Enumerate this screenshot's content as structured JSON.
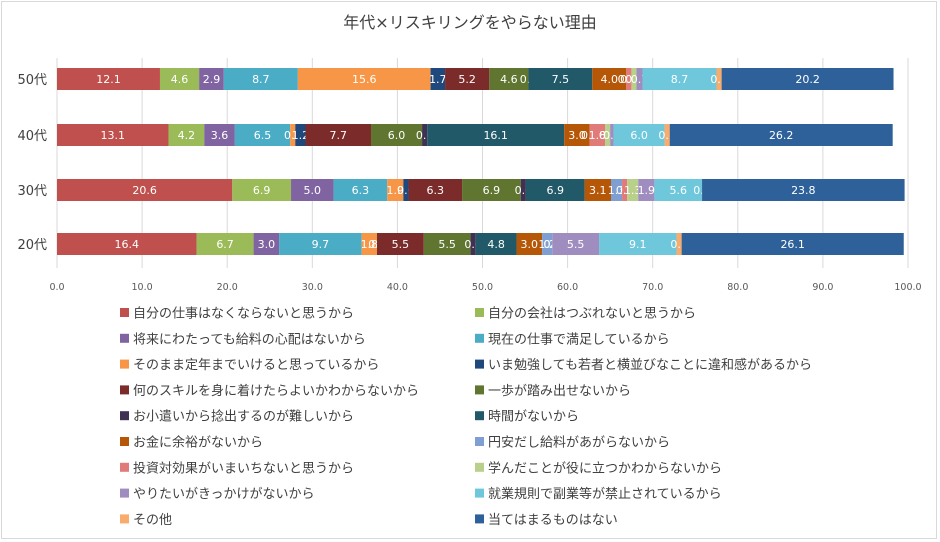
{
  "chart_data": {
    "type": "bar",
    "orientation": "horizontal",
    "stacked": true,
    "title": "年代×リスキリングをやらない理由",
    "categories": [
      "50代",
      "40代",
      "30代",
      "20代"
    ],
    "xlim": [
      0,
      100
    ],
    "xticks": [
      "0.0",
      "10.0",
      "20.0",
      "30.0",
      "40.0",
      "50.0",
      "60.0",
      "70.0",
      "80.0",
      "90.0",
      "100.0"
    ],
    "grid": "vertical",
    "legend_position": "bottom",
    "series": [
      {
        "name": "自分の仕事はなくならないと思うから",
        "color": "#c0504d",
        "values": [
          12.1,
          13.1,
          20.6,
          16.4
        ]
      },
      {
        "name": "自分の会社はつぶれないと思うから",
        "color": "#9bbb59",
        "values": [
          4.6,
          4.2,
          6.9,
          6.7
        ]
      },
      {
        "name": "将来にわたっても給料の心配はないから",
        "color": "#8064a2",
        "values": [
          2.9,
          3.6,
          5.0,
          3.0
        ]
      },
      {
        "name": "現在の仕事で満足しているから",
        "color": "#4bacc6",
        "values": [
          8.7,
          6.5,
          6.3,
          9.7
        ]
      },
      {
        "name": "そのまま定年までいけると思っているから",
        "color": "#f79646",
        "values": [
          15.6,
          0.6,
          1.9,
          1.8
        ]
      },
      {
        "name": "いま勉強しても若者と横並びなことに違和感があるから",
        "color": "#1f497d",
        "values": [
          1.7,
          1.2,
          0.6,
          0.0
        ]
      },
      {
        "name": "何のスキルを身に着けたらよいかわからないから",
        "color": "#7b2c2a",
        "values": [
          5.2,
          7.7,
          6.3,
          5.5
        ]
      },
      {
        "name": "一歩が踏み出せないから",
        "color": "#5f7530",
        "values": [
          4.6,
          6.0,
          6.9,
          5.5
        ]
      },
      {
        "name": "お小遣いから捻出するのが難しいから",
        "color": "#3f3151",
        "values": [
          0.0,
          0.6,
          0.6,
          0.6
        ]
      },
      {
        "name": "時間がないから",
        "color": "#215968",
        "values": [
          7.5,
          16.1,
          6.9,
          4.8
        ]
      },
      {
        "name": "お金に余裕がないから",
        "color": "#b65708",
        "values": [
          4.0,
          3.0,
          3.1,
          3.0
        ]
      },
      {
        "name": "円安だし給料があがらないから",
        "color": "#7f9fd3",
        "values": [
          0.0,
          0.0,
          1.3,
          1.2
        ]
      },
      {
        "name": "投資対効果がいまいちないと思うから",
        "color": "#e07b79",
        "values": [
          0.6,
          1.8,
          0.6,
          0.0
        ]
      },
      {
        "name": "学んだことが役に立つかわからないから",
        "color": "#b8d08a",
        "values": [
          0.6,
          0.6,
          1.3,
          0.0
        ]
      },
      {
        "name": "やりたいがきっかけがないから",
        "color": "#a08dbf",
        "values": [
          0.7,
          0.4,
          1.9,
          5.5
        ]
      },
      {
        "name": "就業規則で副業等が禁止されているから",
        "color": "#6fc7dc",
        "values": [
          8.7,
          6.0,
          5.6,
          9.1
        ]
      },
      {
        "name": "その他",
        "color": "#f9ab6b",
        "values": [
          0.6,
          0.6,
          0.0,
          0.6
        ]
      },
      {
        "name": "当てはまるものはない",
        "color": "#2e6199",
        "values": [
          20.2,
          26.2,
          23.8,
          26.1
        ]
      }
    ],
    "data_labels": [
      [
        "12.1",
        "4.6",
        "2.9",
        "8.7",
        "15.6",
        "1.7",
        "5.2",
        "4.6",
        "0.0",
        "7.5",
        "4.0",
        "0.0",
        "0.6",
        "0.6",
        "0.7",
        "8.7",
        "0.6",
        "20.2"
      ],
      [
        "13.1",
        "4.2",
        "3.6",
        "6.5",
        "0.6",
        "1.2",
        "7.7",
        "6.0",
        "0.6",
        "16.1",
        "3.0",
        "0.0",
        "1.8",
        "0.6",
        "0.4",
        "6.0",
        "0.6",
        "26.2"
      ],
      [
        "20.6",
        "6.9",
        "5.0",
        "6.3",
        "1.9",
        "0.6",
        "6.3",
        "6.9",
        "0.6",
        "6.9",
        "3.1",
        "1.3",
        "0.6",
        "1.3",
        "1.9",
        "5.6",
        "0.0",
        "23.8"
      ],
      [
        "16.4",
        "6.7",
        "3.0",
        "9.7",
        "1.8",
        "0.0",
        "5.5",
        "5.5",
        "0.6",
        "4.8",
        "3.0",
        "1.2",
        "0.0",
        "0.0",
        "5.5",
        "9.1",
        "0.6",
        "26.1"
      ]
    ]
  }
}
